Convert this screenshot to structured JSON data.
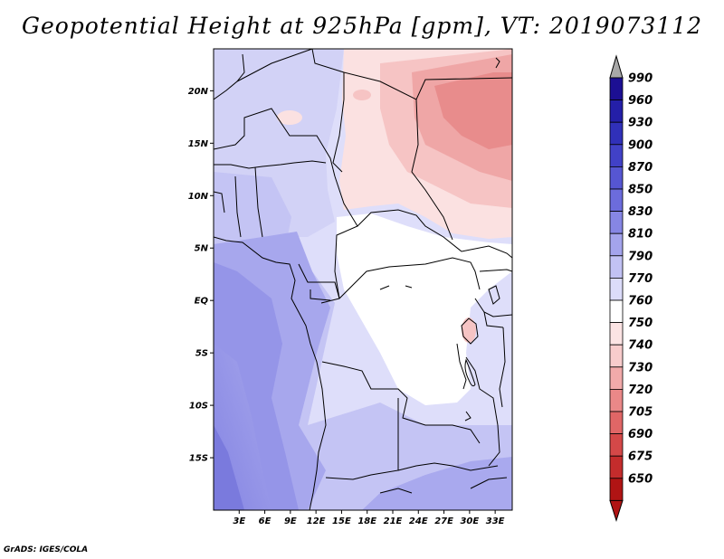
{
  "title": "Geopotential Height at 925hPa [gpm], VT: 2019073112",
  "footer": "GrADS: IGES/COLA",
  "map": {
    "lon_range": [
      0,
      35
    ],
    "lat_range": [
      -20,
      24
    ],
    "lat_ticks": [
      {
        "value": 20,
        "label": "20N"
      },
      {
        "value": 15,
        "label": "15N"
      },
      {
        "value": 10,
        "label": "10N"
      },
      {
        "value": 5,
        "label": "5N"
      },
      {
        "value": 0,
        "label": "EQ"
      },
      {
        "value": -5,
        "label": "5S"
      },
      {
        "value": -10,
        "label": "10S"
      },
      {
        "value": -15,
        "label": "15S"
      }
    ],
    "lon_ticks": [
      {
        "value": 3,
        "label": "3E"
      },
      {
        "value": 6,
        "label": "6E"
      },
      {
        "value": 9,
        "label": "9E"
      },
      {
        "value": 12,
        "label": "12E"
      },
      {
        "value": 15,
        "label": "15E"
      },
      {
        "value": 18,
        "label": "18E"
      },
      {
        "value": 21,
        "label": "21E"
      },
      {
        "value": 24,
        "label": "24E"
      },
      {
        "value": 27,
        "label": "27E"
      },
      {
        "value": 30,
        "label": "30E"
      },
      {
        "value": 33,
        "label": "33E"
      }
    ]
  },
  "colorbar": {
    "levels": [
      "990",
      "960",
      "930",
      "900",
      "870",
      "850",
      "830",
      "810",
      "790",
      "770",
      "760",
      "750",
      "740",
      "730",
      "720",
      "705",
      "690",
      "675",
      "650"
    ],
    "colors": [
      "#1c0f93",
      "#241fa8",
      "#3030b9",
      "#4141c7",
      "#5656d2",
      "#6c6cdc",
      "#8686e4",
      "#a4a4ec",
      "#c2c2f4",
      "#dcdcfa",
      "#ffffff",
      "#fce4e4",
      "#f8cccc",
      "#f2aaaa",
      "#ea8888",
      "#e06666",
      "#d44848",
      "#c42c2c",
      "#b01414"
    ],
    "top_arrow_color": "#a8a8a8",
    "bottom_arrow_color": "#b01414"
  }
}
